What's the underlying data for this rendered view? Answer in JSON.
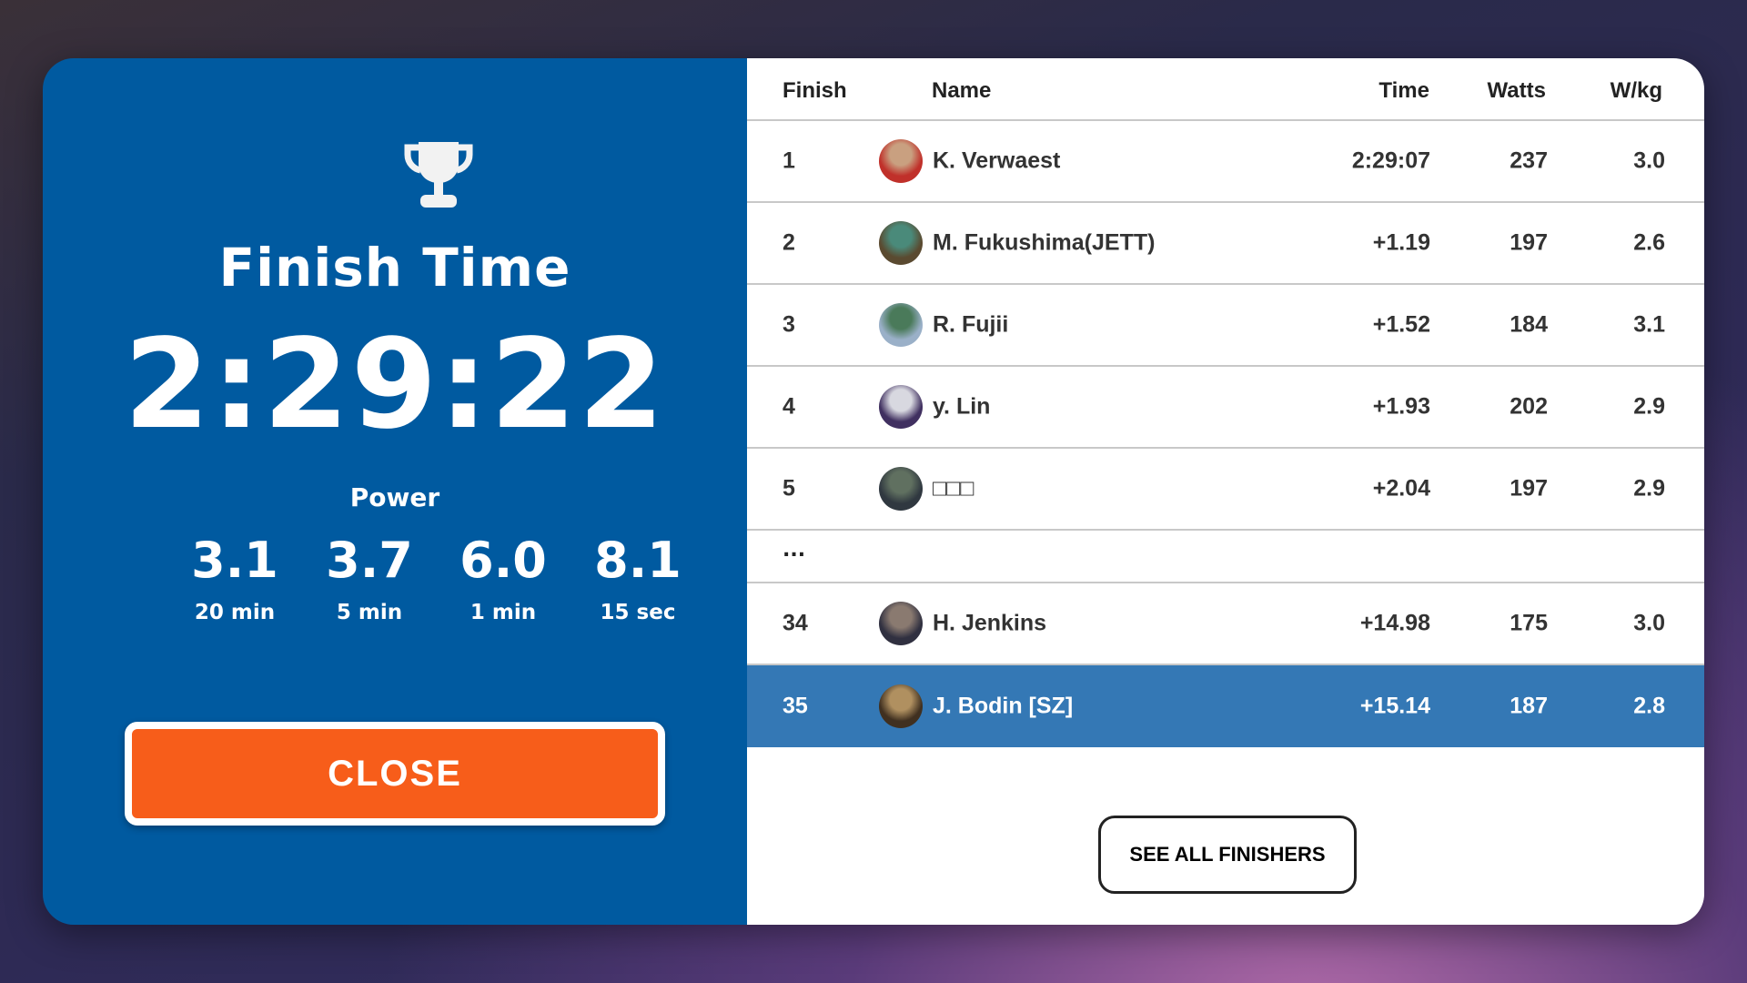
{
  "summary": {
    "title": "Finish Time",
    "finish_time": "2:29:22",
    "power_label": "Power",
    "power": [
      {
        "value": "3.1",
        "label": "20 min"
      },
      {
        "value": "3.7",
        "label": "5 min"
      },
      {
        "value": "6.0",
        "label": "1 min"
      },
      {
        "value": "8.1",
        "label": "15 sec"
      }
    ],
    "close_label": "CLOSE",
    "icon": "trophy-icon"
  },
  "results": {
    "columns": [
      "Finish",
      "Name",
      "Time",
      "Watts",
      "W/kg"
    ],
    "rows": [
      {
        "finish": "1",
        "name": "K. Verwaest",
        "time": "2:29:07",
        "watts": "237",
        "wkg": "3.0"
      },
      {
        "finish": "2",
        "name": "M. Fukushima(JETT)",
        "time": "+1.19",
        "watts": "197",
        "wkg": "2.6"
      },
      {
        "finish": "3",
        "name": "R. Fujii",
        "time": "+1.52",
        "watts": "184",
        "wkg": "3.1"
      },
      {
        "finish": "4",
        "name": "y. Lin",
        "time": "+1.93",
        "watts": "202",
        "wkg": "2.9"
      },
      {
        "finish": "5",
        "name": "□□□",
        "time": "+2.04",
        "watts": "197",
        "wkg": "2.9"
      }
    ],
    "ellipsis": "...",
    "rows_after": [
      {
        "finish": "34",
        "name": "H. Jenkins",
        "time": "+14.98",
        "watts": "175",
        "wkg": "3.0"
      },
      {
        "finish": "35",
        "name": "J. Bodin [SZ]",
        "time": "+15.14",
        "watts": "187",
        "wkg": "2.8",
        "highlighted": true
      }
    ],
    "see_all_label": "SEE ALL FINISHERS"
  },
  "colors": {
    "panel_blue": "#005aa0",
    "close_orange": "#f75d1a",
    "highlight_row": "#3478b5"
  }
}
